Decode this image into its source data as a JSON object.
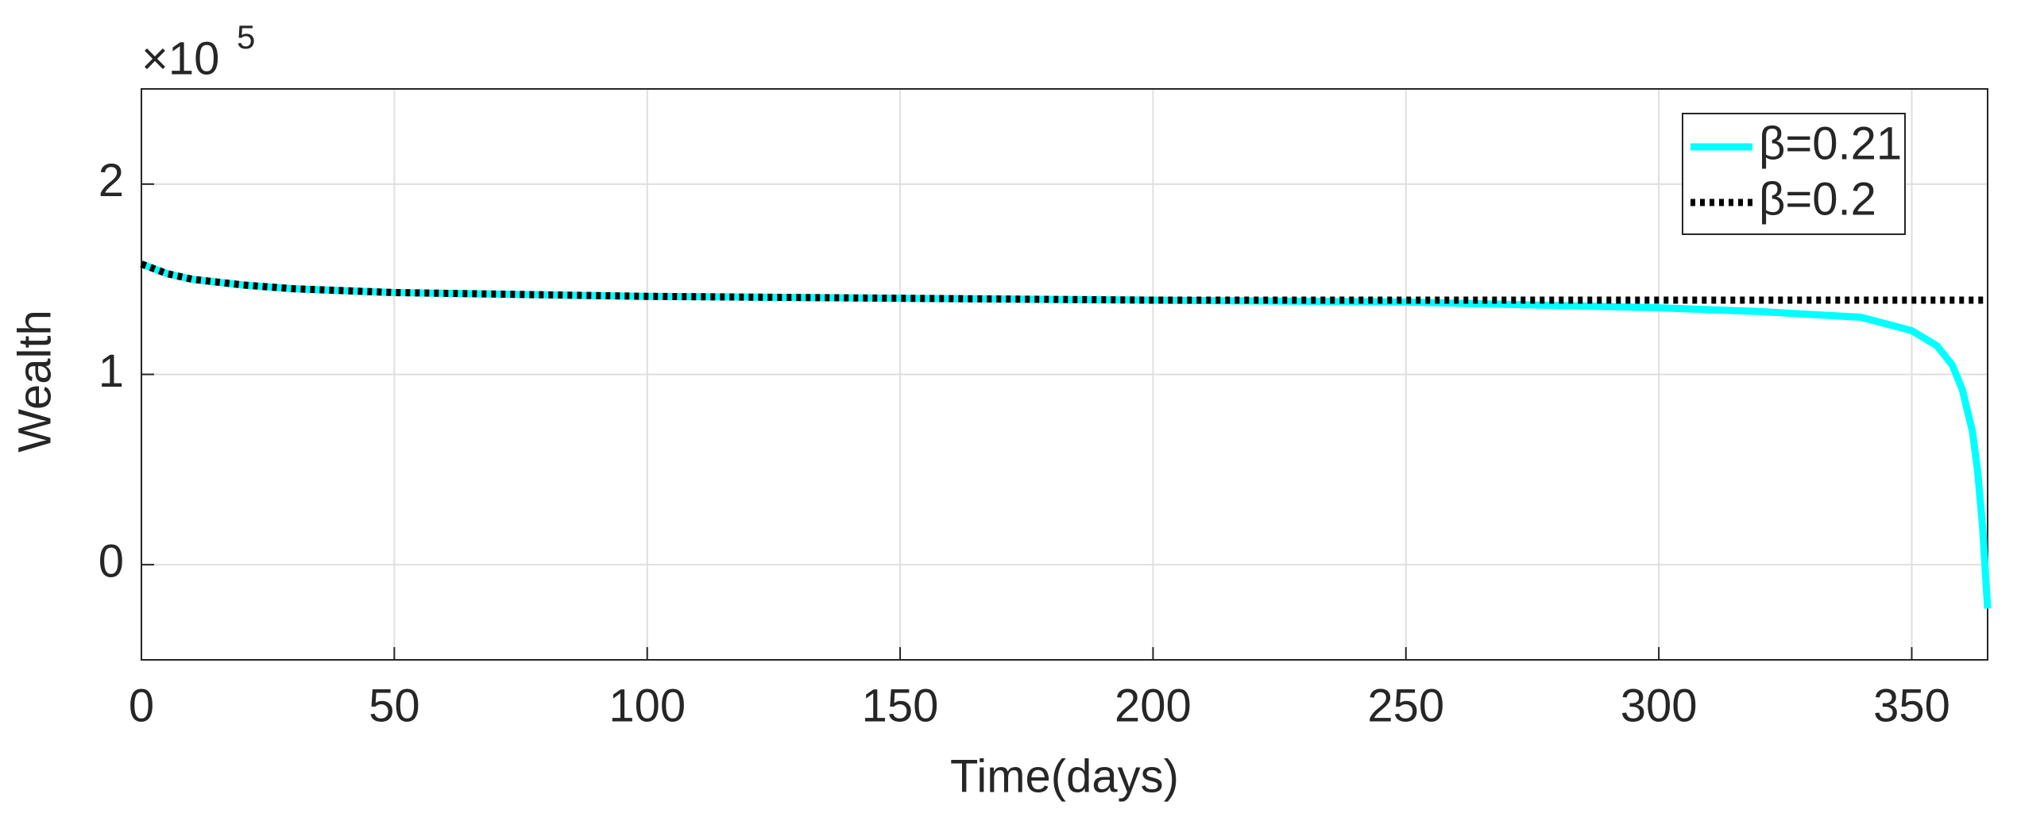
{
  "chart_data": {
    "type": "line",
    "xlabel": "Time(days)",
    "ylabel": "Wealth",
    "y_multiplier": {
      "base": "×10",
      "exponent": "5"
    },
    "x": [
      0,
      5,
      10,
      20,
      30,
      50,
      75,
      100,
      150,
      200,
      250,
      300,
      320,
      340,
      350,
      355,
      358,
      360,
      362,
      363,
      364,
      365
    ],
    "series": [
      {
        "name": "β=0.21",
        "color": "#00ffff",
        "dash": "solid",
        "values": [
          1.58,
          1.53,
          1.5,
          1.47,
          1.45,
          1.43,
          1.42,
          1.41,
          1.4,
          1.39,
          1.38,
          1.35,
          1.33,
          1.3,
          1.23,
          1.15,
          1.05,
          0.92,
          0.7,
          0.5,
          0.2,
          -0.23
        ]
      },
      {
        "name": "β=0.2",
        "color": "#000000",
        "dash": "dotted",
        "values": [
          1.58,
          1.53,
          1.5,
          1.47,
          1.45,
          1.43,
          1.42,
          1.41,
          1.4,
          1.39,
          1.39,
          1.39,
          1.39,
          1.39,
          1.39,
          1.39,
          1.39,
          1.39,
          1.39,
          1.39,
          1.39,
          1.39
        ]
      }
    ],
    "xlim": [
      0,
      365
    ],
    "xticks": [
      0,
      50,
      100,
      150,
      200,
      250,
      300,
      350
    ],
    "ylim": [
      -0.5,
      2.5
    ],
    "yticks": [
      0,
      1,
      2
    ],
    "grid": true,
    "legend": "upper right"
  }
}
